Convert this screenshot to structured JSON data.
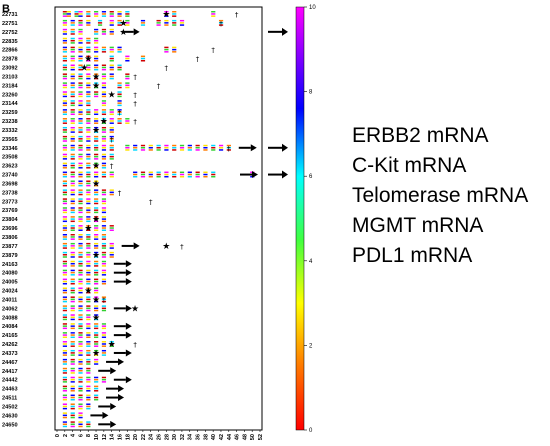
{
  "panel_label": "B",
  "legend_labels": [
    "ERBB2 mRNA",
    "C-Kit mRNA",
    "Telomerase mRNA",
    "MGMT mRNA",
    "PDL1 mRNA"
  ],
  "colorbar": {
    "min": 0,
    "max": 10,
    "ticks": [
      "0",
      "2",
      "4",
      "6",
      "8",
      "10"
    ]
  },
  "chart_data": {
    "type": "heatmap",
    "xlim": [
      0,
      52
    ],
    "x_ticks": [
      "0",
      "2",
      "4",
      "6",
      "8",
      "10",
      "12",
      "14",
      "16",
      "18",
      "20",
      "22",
      "24",
      "26",
      "28",
      "30",
      "32",
      "34",
      "36",
      "38",
      "40",
      "42",
      "44",
      "46",
      "48",
      "50",
      "52"
    ],
    "color_scale": [
      "#d00000",
      "#ff7a00",
      "#ffe000",
      "#30d030",
      "#00d8ff",
      "#0000ff",
      "#ff00ff"
    ],
    "rows": [
      {
        "id": "22731",
        "w": [
          2,
          3,
          5,
          6,
          8,
          10,
          12,
          14,
          16,
          18,
          28,
          30,
          40
        ],
        "star": 28,
        "dagger": 46,
        "arrow": false
      },
      {
        "id": "22751",
        "w": [
          2,
          4,
          6,
          8,
          11,
          14,
          16,
          18,
          22,
          26,
          28,
          30,
          32,
          42
        ],
        "star": 17,
        "dagger": 42,
        "arrow": false
      },
      {
        "id": "22752",
        "w": [
          2,
          4,
          6,
          10,
          12,
          14
        ],
        "star": 17,
        "dagger": null,
        "arrow": true
      },
      {
        "id": "22835",
        "w": [
          2,
          4,
          6,
          8,
          10
        ],
        "star": null,
        "dagger": null,
        "arrow": false
      },
      {
        "id": "22866",
        "w": [
          2,
          4,
          6,
          8,
          10,
          12,
          14,
          16,
          28,
          30
        ],
        "star": null,
        "dagger": 40,
        "arrow": false
      },
      {
        "id": "22878",
        "w": [
          2,
          4,
          6,
          8,
          10,
          14,
          18,
          22
        ],
        "star": 8,
        "dagger": 36,
        "arrow": false
      },
      {
        "id": "23092",
        "w": [
          2,
          4,
          6,
          8,
          10,
          12,
          14,
          16
        ],
        "star": 7,
        "dagger": 28,
        "arrow": false
      },
      {
        "id": "23103",
        "w": [
          2,
          4,
          6,
          8,
          10,
          12,
          14,
          18
        ],
        "star": 10,
        "dagger": 20,
        "arrow": false
      },
      {
        "id": "23184",
        "w": [
          2,
          4,
          6,
          8,
          10,
          12,
          16,
          18
        ],
        "star": 10,
        "dagger": 26,
        "arrow": false
      },
      {
        "id": "23260",
        "w": [
          2,
          4,
          6,
          8,
          10,
          12,
          16
        ],
        "star": 14,
        "dagger": 20,
        "arrow": false
      },
      {
        "id": "23144",
        "w": [
          2,
          4,
          6,
          8,
          12,
          16
        ],
        "star": null,
        "dagger": 20,
        "arrow": false
      },
      {
        "id": "23259",
        "w": [
          2,
          4,
          6,
          8,
          10,
          12,
          14,
          16
        ],
        "star": null,
        "dagger": 16,
        "arrow": false
      },
      {
        "id": "23238",
        "w": [
          2,
          4,
          6,
          8,
          10,
          12,
          14,
          16,
          18
        ],
        "star": 12,
        "dagger": 20,
        "arrow": false
      },
      {
        "id": "23332",
        "w": [
          2,
          4,
          6,
          8,
          10,
          12,
          14
        ],
        "star": 10,
        "dagger": null,
        "arrow": false
      },
      {
        "id": "23565",
        "w": [
          2,
          4,
          6,
          8,
          10,
          12,
          14
        ],
        "star": null,
        "dagger": 14,
        "arrow": false
      },
      {
        "id": "23346",
        "w": [
          2,
          4,
          6,
          8,
          10,
          12,
          14,
          18,
          20,
          22,
          24,
          26,
          28,
          30,
          32,
          34,
          36,
          38,
          40,
          42,
          44
        ],
        "star": null,
        "dagger": 44,
        "arrow": true
      },
      {
        "id": "23508",
        "w": [
          2,
          4,
          6,
          8,
          10,
          12,
          14
        ],
        "star": null,
        "dagger": null,
        "arrow": false
      },
      {
        "id": "23623",
        "w": [
          2,
          4,
          6,
          8,
          10,
          12
        ],
        "star": 10,
        "dagger": 14,
        "arrow": false
      },
      {
        "id": "23740",
        "w": [
          2,
          4,
          6,
          8,
          10,
          12,
          14,
          20,
          22,
          24,
          26,
          28,
          30,
          32,
          34,
          36,
          38,
          40,
          50
        ],
        "star": null,
        "dagger": null,
        "arrow": true
      },
      {
        "id": "23698",
        "w": [
          2,
          4,
          6,
          8,
          10
        ],
        "star": 10,
        "dagger": null,
        "arrow": false
      },
      {
        "id": "23738",
        "w": [
          2,
          4,
          6,
          8,
          10,
          12,
          14
        ],
        "star": null,
        "dagger": 16,
        "arrow": false
      },
      {
        "id": "23773",
        "w": [
          2,
          4,
          6,
          8,
          10,
          12
        ],
        "star": null,
        "dagger": 24,
        "arrow": false
      },
      {
        "id": "23769",
        "w": [
          2,
          4,
          6,
          8,
          10,
          12
        ],
        "star": null,
        "dagger": null,
        "arrow": false
      },
      {
        "id": "23804",
        "w": [
          2,
          4,
          6,
          8,
          10,
          12
        ],
        "star": 10,
        "dagger": null,
        "arrow": false
      },
      {
        "id": "23696",
        "w": [
          2,
          4,
          6,
          8,
          10,
          12,
          14
        ],
        "star": 8,
        "dagger": null,
        "arrow": false
      },
      {
        "id": "23806",
        "w": [
          2,
          4,
          6,
          8,
          10,
          12
        ],
        "star": null,
        "dagger": null,
        "arrow": false
      },
      {
        "id": "23877",
        "w": [
          2,
          4,
          6,
          8,
          10,
          12,
          14
        ],
        "star": 28,
        "dagger": 32,
        "arrow": true
      },
      {
        "id": "23879",
        "w": [
          2,
          4,
          6,
          8,
          10,
          12,
          14
        ],
        "star": 10,
        "dagger": null,
        "arrow": false
      },
      {
        "id": "24163",
        "w": [
          2,
          4,
          6,
          8,
          10,
          12
        ],
        "star": null,
        "dagger": null,
        "arrow": true
      },
      {
        "id": "24080",
        "w": [
          2,
          4,
          6,
          8,
          10,
          12
        ],
        "star": null,
        "dagger": null,
        "arrow": true
      },
      {
        "id": "24005",
        "w": [
          2,
          4,
          6,
          8,
          10,
          12
        ],
        "star": null,
        "dagger": null,
        "arrow": true
      },
      {
        "id": "24024",
        "w": [
          2,
          4,
          6,
          8,
          10
        ],
        "star": 8,
        "dagger": null,
        "arrow": false
      },
      {
        "id": "24011",
        "w": [
          2,
          4,
          6,
          8,
          10,
          12
        ],
        "star": 10,
        "dagger": 12,
        "arrow": false
      },
      {
        "id": "24062",
        "w": [
          2,
          4,
          6,
          8,
          10,
          12
        ],
        "star": 20,
        "dagger": null,
        "arrow": true
      },
      {
        "id": "24088",
        "w": [
          2,
          4,
          6,
          8,
          10
        ],
        "star": 10,
        "dagger": null,
        "arrow": false
      },
      {
        "id": "24084",
        "w": [
          2,
          4,
          6,
          8,
          10,
          12
        ],
        "star": null,
        "dagger": null,
        "arrow": true
      },
      {
        "id": "24165",
        "w": [
          2,
          4,
          6,
          8,
          10,
          12
        ],
        "star": null,
        "dagger": null,
        "arrow": true
      },
      {
        "id": "24262",
        "w": [
          2,
          4,
          6,
          8,
          10,
          12,
          14
        ],
        "star": 14,
        "dagger": 20,
        "arrow": false
      },
      {
        "id": "24373",
        "w": [
          2,
          4,
          6,
          8,
          10,
          12
        ],
        "star": 10,
        "dagger": null,
        "arrow": true
      },
      {
        "id": "24467",
        "w": [
          2,
          4,
          6,
          8,
          10
        ],
        "star": null,
        "dagger": null,
        "arrow": true
      },
      {
        "id": "24417",
        "w": [
          2,
          4,
          6,
          8
        ],
        "star": null,
        "dagger": null,
        "arrow": true
      },
      {
        "id": "24442",
        "w": [
          2,
          4,
          6,
          8,
          10,
          12
        ],
        "star": null,
        "dagger": null,
        "arrow": true
      },
      {
        "id": "24463",
        "w": [
          2,
          4,
          6,
          8,
          10
        ],
        "star": null,
        "dagger": null,
        "arrow": true
      },
      {
        "id": "24511",
        "w": [
          2,
          4,
          6,
          8,
          10
        ],
        "star": null,
        "dagger": null,
        "arrow": true
      },
      {
        "id": "24502",
        "w": [
          2,
          4,
          6,
          8
        ],
        "star": null,
        "dagger": null,
        "arrow": true
      },
      {
        "id": "24630",
        "w": [
          2,
          4,
          6
        ],
        "star": null,
        "dagger": null,
        "arrow": true
      },
      {
        "id": "24650",
        "w": [
          2,
          4,
          6,
          8
        ],
        "star": null,
        "dagger": null,
        "arrow": true
      }
    ]
  }
}
